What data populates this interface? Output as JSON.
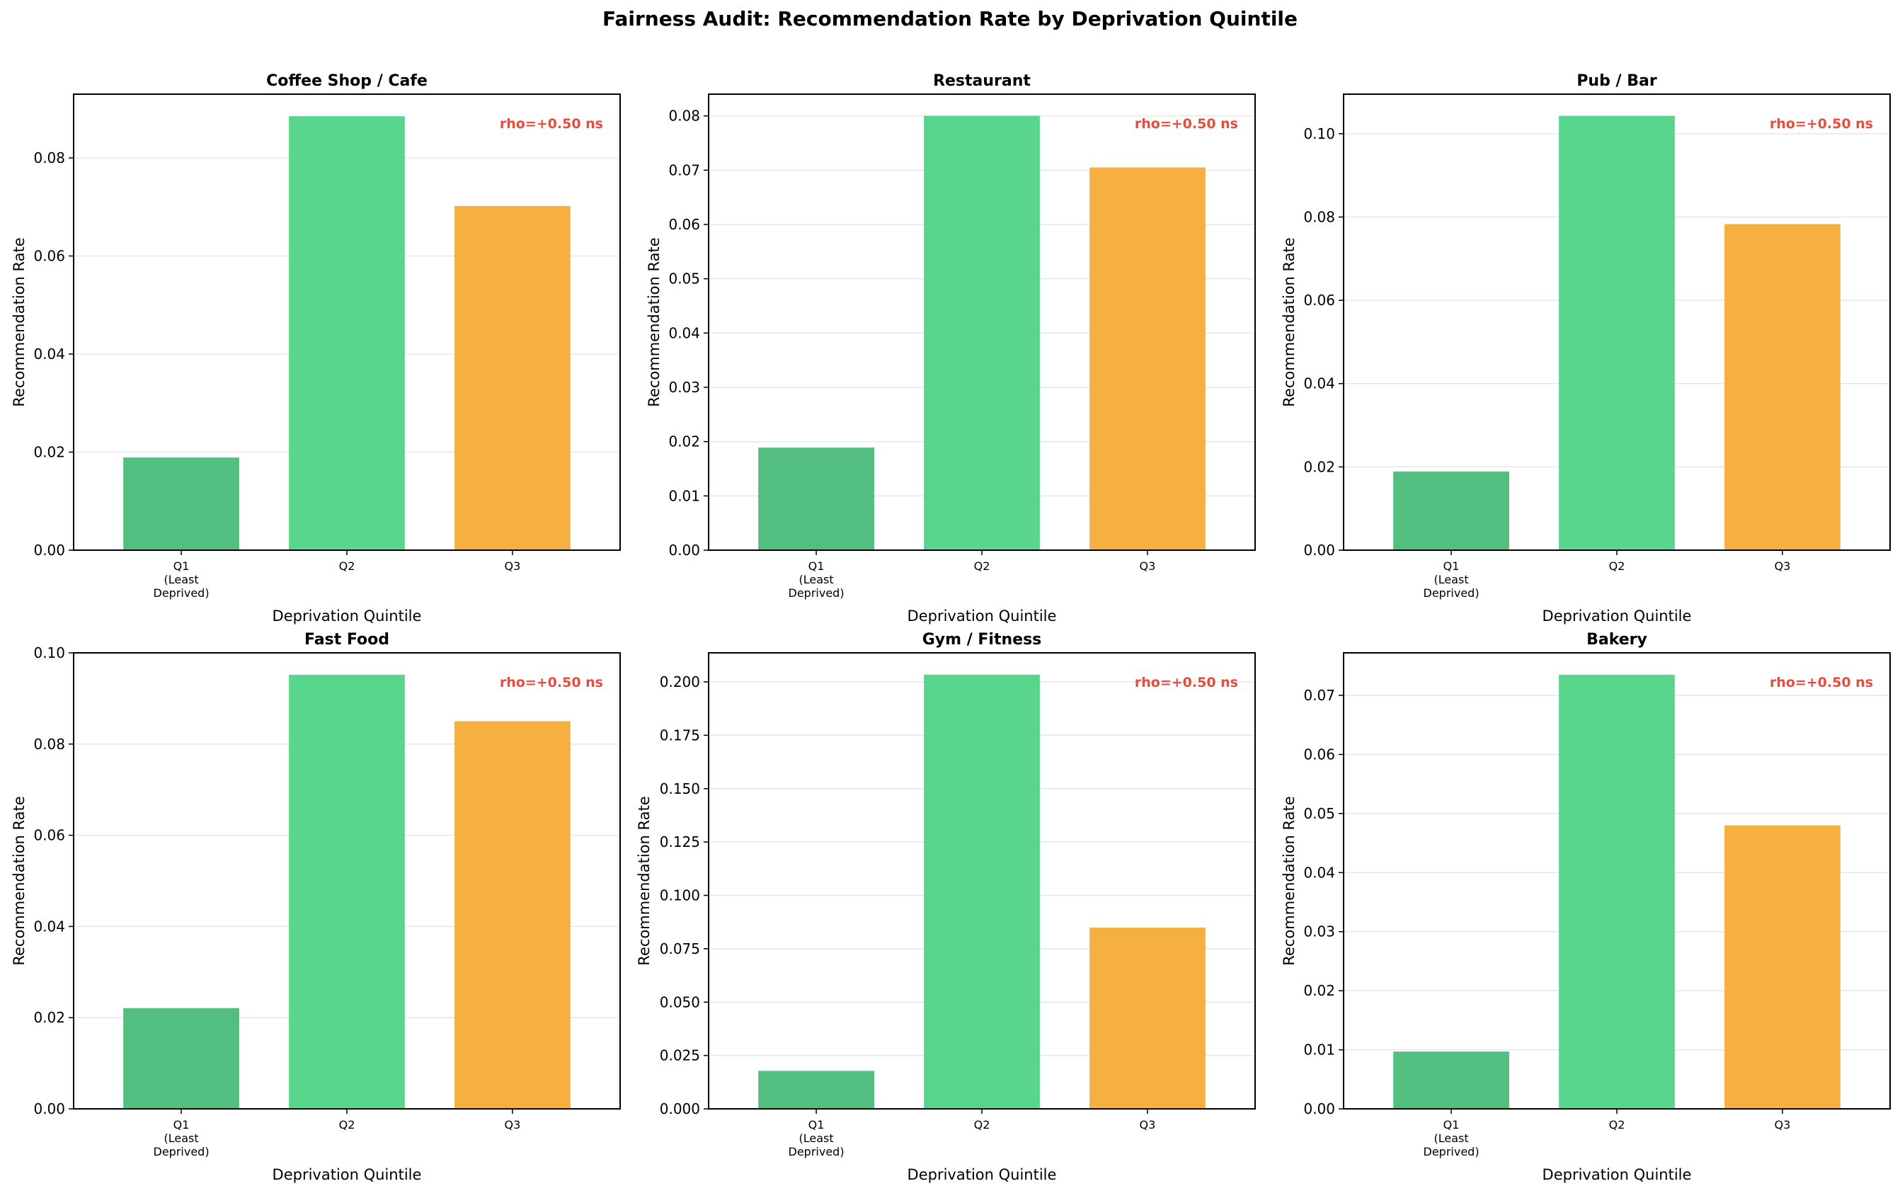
{
  "figure_title": "Fairness Audit: Recommendation Rate by Deprivation Quintile",
  "colors": {
    "Q1": "#52be80",
    "Q2": "#58d68d",
    "Q3": "#f5b041",
    "annotation": "#e74c3c",
    "grid": "#e6e6e6",
    "axis": "#000000"
  },
  "chart_data": [
    {
      "type": "bar",
      "title": "Coffee Shop / Cafe",
      "categories": [
        "Q1\n(Least\nDeprived)",
        "Q2",
        "Q3"
      ],
      "values": [
        0.0189,
        0.0885,
        0.0702
      ],
      "xlabel": "Deprivation Quintile",
      "ylabel": "Recommendation Rate",
      "ylim": [
        0,
        0.093
      ],
      "yticks": [
        0.0,
        0.02,
        0.04,
        0.06,
        0.08
      ],
      "tick_decimals": 2,
      "annotation": "rho=+0.50 ns",
      "grid": true,
      "grid_axis": "y"
    },
    {
      "type": "bar",
      "title": "Restaurant",
      "categories": [
        "Q1\n(Least\nDeprived)",
        "Q2",
        "Q3"
      ],
      "values": [
        0.0189,
        0.08,
        0.0705
      ],
      "xlabel": "Deprivation Quintile",
      "ylabel": "Recommendation Rate",
      "ylim": [
        0,
        0.084
      ],
      "yticks": [
        0.0,
        0.01,
        0.02,
        0.03,
        0.04,
        0.05,
        0.06,
        0.07,
        0.08
      ],
      "tick_decimals": 2,
      "annotation": "rho=+0.50 ns",
      "grid": true,
      "grid_axis": "y"
    },
    {
      "type": "bar",
      "title": "Pub / Bar",
      "categories": [
        "Q1\n(Least\nDeprived)",
        "Q2",
        "Q3"
      ],
      "values": [
        0.0189,
        0.1043,
        0.0783
      ],
      "xlabel": "Deprivation Quintile",
      "ylabel": "Recommendation Rate",
      "ylim": [
        0,
        0.1095
      ],
      "yticks": [
        0.0,
        0.02,
        0.04,
        0.06,
        0.08,
        0.1
      ],
      "tick_decimals": 2,
      "annotation": "rho=+0.50 ns",
      "grid": true,
      "grid_axis": "y"
    },
    {
      "type": "bar",
      "title": "Fast Food",
      "categories": [
        "Q1\n(Least\nDeprived)",
        "Q2",
        "Q3"
      ],
      "values": [
        0.0221,
        0.0952,
        0.085
      ],
      "xlabel": "Deprivation Quintile",
      "ylabel": "Recommendation Rate",
      "ylim": [
        0,
        0.1
      ],
      "yticks": [
        0.0,
        0.02,
        0.04,
        0.06,
        0.08,
        0.1
      ],
      "tick_decimals": 2,
      "annotation": "rho=+0.50 ns",
      "grid": true,
      "grid_axis": "y"
    },
    {
      "type": "bar",
      "title": "Gym / Fitness",
      "categories": [
        "Q1\n(Least\nDeprived)",
        "Q2",
        "Q3"
      ],
      "values": [
        0.0178,
        0.2034,
        0.0849
      ],
      "xlabel": "Deprivation Quintile",
      "ylabel": "Recommendation Rate",
      "ylim": [
        0,
        0.2136
      ],
      "yticks": [
        0.0,
        0.025,
        0.05,
        0.075,
        0.1,
        0.125,
        0.15,
        0.175,
        0.2
      ],
      "tick_decimals": 3,
      "annotation": "rho=+0.50 ns",
      "grid": true,
      "grid_axis": "y"
    },
    {
      "type": "bar",
      "title": "Bakery",
      "categories": [
        "Q1\n(Least\nDeprived)",
        "Q2",
        "Q3"
      ],
      "values": [
        0.0097,
        0.0735,
        0.048
      ],
      "xlabel": "Deprivation Quintile",
      "ylabel": "Recommendation Rate",
      "ylim": [
        0,
        0.0772
      ],
      "yticks": [
        0.0,
        0.01,
        0.02,
        0.03,
        0.04,
        0.05,
        0.06,
        0.07
      ],
      "tick_decimals": 2,
      "annotation": "rho=+0.50 ns",
      "grid": true,
      "grid_axis": "y"
    }
  ]
}
